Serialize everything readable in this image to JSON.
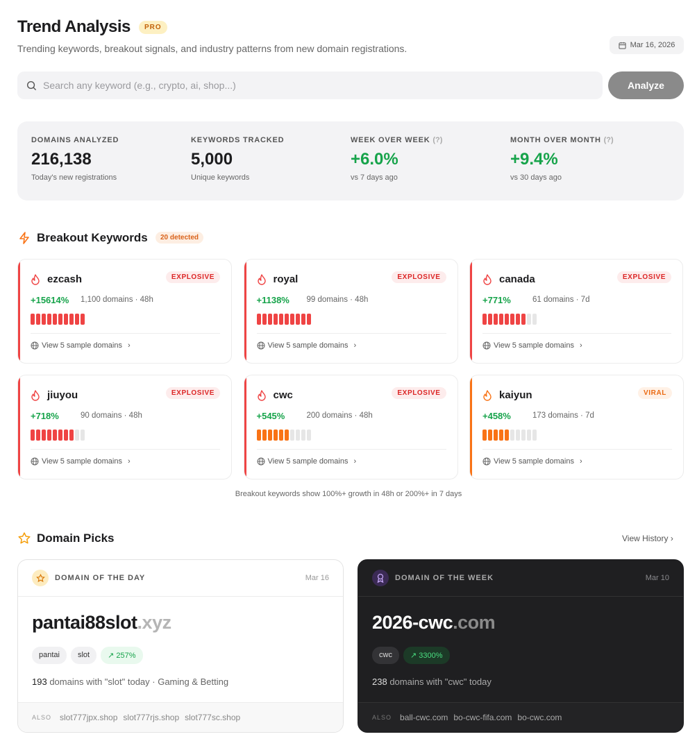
{
  "header": {
    "title": "Trend Analysis",
    "badge": "PRO",
    "subtitle": "Trending keywords, breakout signals, and industry patterns from new domain registrations.",
    "date": "Mar 16, 2026"
  },
  "search": {
    "placeholder": "Search any keyword (e.g., crypto, ai, shop...)",
    "value": "",
    "button": "Analyze"
  },
  "stats": [
    {
      "label": "DOMAINS ANALYZED",
      "help": "",
      "value": "216,138",
      "sub": "Today's new registrations",
      "positive": false
    },
    {
      "label": "KEYWORDS TRACKED",
      "help": "",
      "value": "5,000",
      "sub": "Unique keywords",
      "positive": false
    },
    {
      "label": "WEEK OVER WEEK",
      "help": "(?)",
      "value": "+6.0%",
      "sub": "vs 7 days ago",
      "positive": true
    },
    {
      "label": "MONTH OVER MONTH",
      "help": "(?)",
      "value": "+9.4%",
      "sub": "vs 30 days ago",
      "positive": true
    }
  ],
  "breakout": {
    "title": "Breakout Keywords",
    "badge": "20 detected",
    "sample_label": "View 5 sample domains",
    "note": "Breakout keywords show 100%+ growth in 48h or 200%+ in 7 days",
    "colors": {
      "explosive": "#ef4444",
      "viral": "#f97316"
    },
    "items": [
      {
        "keyword": "ezcash",
        "level": "EXPLOSIVE",
        "growth": "+15614%",
        "meta": "1,100 domains · 48h",
        "strength": 10,
        "bar_color": "#ef4444"
      },
      {
        "keyword": "royal",
        "level": "EXPLOSIVE",
        "growth": "+1138%",
        "meta": "99 domains · 48h",
        "strength": 10,
        "bar_color": "#ef4444"
      },
      {
        "keyword": "canada",
        "level": "EXPLOSIVE",
        "growth": "+771%",
        "meta": "61 domains · 7d",
        "strength": 8,
        "bar_color": "#ef4444"
      },
      {
        "keyword": "jiuyou",
        "level": "EXPLOSIVE",
        "growth": "+718%",
        "meta": "90 domains · 48h",
        "strength": 8,
        "bar_color": "#ef4444"
      },
      {
        "keyword": "cwc",
        "level": "EXPLOSIVE",
        "growth": "+545%",
        "meta": "200 domains · 48h",
        "strength": 6,
        "bar_color": "#f97316"
      },
      {
        "keyword": "kaiyun",
        "level": "VIRAL",
        "growth": "+458%",
        "meta": "173 domains · 7d",
        "strength": 5,
        "bar_color": "#f97316"
      }
    ]
  },
  "picks": {
    "title": "Domain Picks",
    "history": "View History",
    "day": {
      "label": "DOMAIN OF THE DAY",
      "date": "Mar 16",
      "name": "pantai88slot",
      "tld": ".xyz",
      "tags": [
        "pantai",
        "slot"
      ],
      "growth": "257%",
      "count": "193",
      "desc": " domains with \"slot\" today · Gaming & Betting",
      "also_label": "ALSO",
      "also": [
        "slot777jpx.shop",
        "slot777rjs.shop",
        "slot777sc.shop"
      ]
    },
    "week": {
      "label": "DOMAIN OF THE WEEK",
      "date": "Mar 10",
      "name": "2026-cwc",
      "tld": ".com",
      "tags": [
        "cwc"
      ],
      "growth": "3300%",
      "count": "238",
      "desc": " domains with \"cwc\" today",
      "also_label": "ALSO",
      "also": [
        "ball-cwc.com",
        "bo-cwc-fifa.com",
        "bo-cwc.com"
      ]
    }
  }
}
